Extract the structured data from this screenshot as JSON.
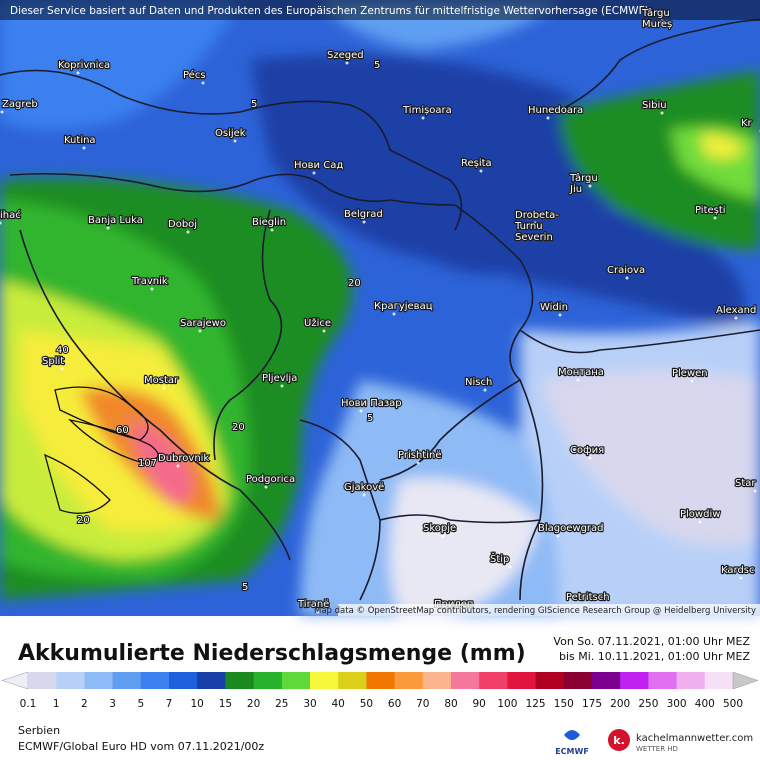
{
  "banner": "Dieser Service basiert auf Daten und Produkten des Europäischen Zentrums für mittelfristige Wettervorhersage (ECMWF)",
  "map": {
    "cities": [
      "Koprivnica",
      "Pécs",
      "Szeged",
      [
        "Târgu",
        "Mureș"
      ],
      "Zagreb",
      "Osijek",
      "Timișoara",
      "Hunedoara",
      "Sibiu",
      "Kr",
      "Kutina",
      "Нови Сад",
      "Reșita",
      [
        "Târgu",
        "Jiu"
      ],
      "Pitești",
      "ihać",
      "Banja Luka",
      "Doboj",
      "Bieglin",
      "Belgrad",
      [
        "Drobeta-",
        "Turnu",
        "Severin"
      ],
      "Travnik",
      "Craiova",
      "Sarajewo",
      "Крагујевац",
      "Užice",
      "Widin",
      "Alexand",
      "Split",
      "Mostar",
      "Pljevlja",
      "Nisch",
      "Монтана",
      "Plewen",
      "Нови Пазар",
      "Dubrovnik",
      "Prishtinë",
      "София",
      "Podgorica",
      "Gjakovë",
      "Star",
      "Plowdiw",
      "Skopje",
      "Blagoewgrad",
      "Štip",
      "Kardsc",
      "Petritsch",
      "Tiranë",
      "Прилеп"
    ],
    "contours": [
      "5",
      "5",
      "20",
      "40",
      "20",
      "60",
      "107",
      "20",
      "5",
      "5"
    ],
    "attribution": "Map data © OpenStreetMap contributors, rendering GIScience Research Group @ Heidelberg University"
  },
  "footer": {
    "title": "Akkumulierte Niederschlagsmenge (mm)",
    "period": [
      "Von So. 07.11.2021, 01:00 Uhr MEZ",
      "bis Mi. 10.11.2021, 01:00 Uhr MEZ"
    ],
    "region": "Serbien",
    "model": "ECMWF/Global Euro HD vom  07.11.2021/00z",
    "ecmwf_logo": "ECMWF",
    "site": "kachelmannwetter.com",
    "site_sub": "WETTER HD"
  },
  "legend": {
    "labels": [
      0.1,
      1,
      2,
      3,
      5,
      7,
      10,
      15,
      20,
      25,
      30,
      40,
      50,
      60,
      70,
      80,
      90,
      100,
      125,
      150,
      175,
      200,
      250,
      300,
      400,
      500
    ],
    "colors": [
      "#eeeef8",
      "#d7d7ee",
      "#b8d0f8",
      "#8ebaf5",
      "#5e9ff2",
      "#3a80ee",
      "#1e5fdc",
      "#173fa8",
      "#1a8a1e",
      "#25b12a",
      "#5fd83a",
      "#f7f73a",
      "#dcd11a",
      "#f07800",
      "#fb9a3a",
      "#fbb48c",
      "#f5779a",
      "#f0406a",
      "#e0143c",
      "#b00020",
      "#8a0030",
      "#7a0090",
      "#c020f0",
      "#e070f0",
      "#f0b0f0",
      "#f5e0f5",
      "#c8c8c8"
    ]
  }
}
